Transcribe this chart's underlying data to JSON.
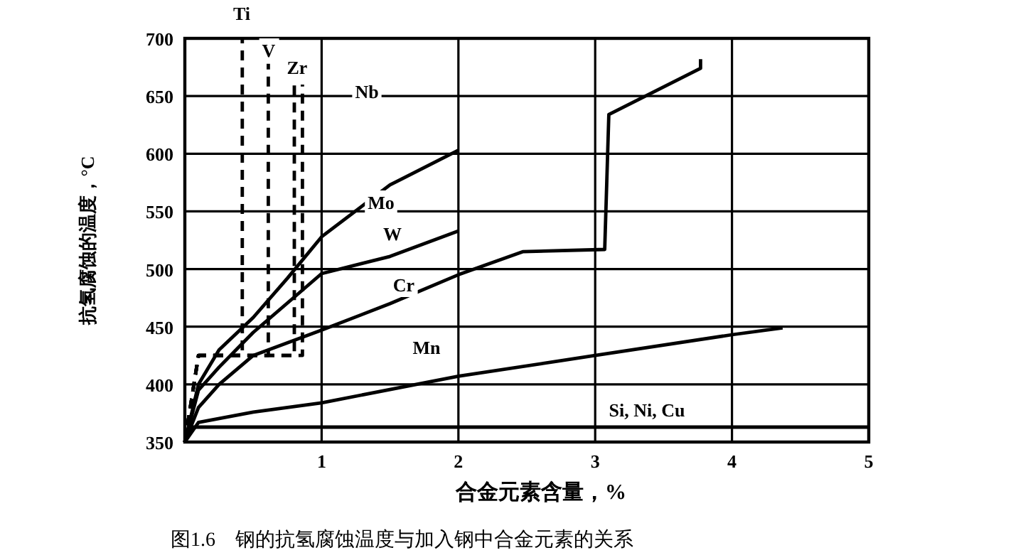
{
  "chart_data": {
    "type": "line",
    "title": "图1.6　钢的抗氢腐蚀温度与加入钢中合金元素的关系",
    "xlabel": "合金元素含量，%",
    "ylabel": "抗氢腐蚀的温度，°C",
    "xlim": [
      0,
      5
    ],
    "ylim": [
      350,
      700
    ],
    "xticks": [
      1,
      2,
      3,
      4,
      5
    ],
    "yticks": [
      350,
      400,
      450,
      500,
      550,
      600,
      650,
      700
    ],
    "grid": true,
    "marker": "none",
    "series": [
      {
        "name": "Ti",
        "color": "#000000",
        "line_style": "dashed",
        "x": [
          0,
          0.1,
          0.42,
          0.42
        ],
        "values": [
          350,
          425,
          425,
          700
        ]
      },
      {
        "name": "V",
        "color": "#000000",
        "line_style": "dashed",
        "x": [
          0,
          0.1,
          0.61,
          0.61
        ],
        "values": [
          350,
          425,
          425,
          678
        ]
      },
      {
        "name": "Zr",
        "color": "#000000",
        "line_style": "dashed",
        "x": [
          0,
          0.1,
          0.8,
          0.8
        ],
        "values": [
          350,
          425,
          425,
          660
        ]
      },
      {
        "name": "Nb",
        "color": "#000000",
        "line_style": "dashed",
        "x": [
          0,
          0.1,
          0.86,
          0.86
        ],
        "values": [
          350,
          425,
          425,
          660
        ]
      },
      {
        "name": "Mo",
        "color": "#000000",
        "line_style": "solid",
        "x": [
          0,
          0.1,
          0.25,
          0.5,
          0.75,
          1,
          1.5,
          2
        ],
        "values": [
          350,
          400,
          430,
          458,
          492,
          528,
          573,
          603
        ]
      },
      {
        "name": "W",
        "color": "#000000",
        "line_style": "solid",
        "x": [
          0,
          0.1,
          0.25,
          0.5,
          1,
          1.5,
          2
        ],
        "values": [
          350,
          395,
          415,
          445,
          496,
          511,
          533
        ]
      },
      {
        "name": "Cr",
        "color": "#000000",
        "line_style": "solid",
        "x": [
          0,
          0.1,
          0.25,
          0.5,
          1,
          1.5,
          2,
          2.47,
          3.07,
          3.1,
          3.77,
          3.77
        ],
        "values": [
          350,
          380,
          400,
          425,
          447,
          470,
          495,
          515,
          517,
          634,
          674,
          682
        ]
      },
      {
        "name": "Mn",
        "color": "#000000",
        "line_style": "solid",
        "x": [
          0,
          0.1,
          0.5,
          1,
          2,
          3,
          4,
          4.37
        ],
        "values": [
          350,
          367,
          376,
          384,
          407,
          425,
          443,
          449
        ]
      },
      {
        "name": "Si, Ni, Cu",
        "color": "#000000",
        "line_style": "solid",
        "x": [
          0,
          0.05,
          5
        ],
        "values": [
          350,
          363,
          363
        ]
      }
    ]
  }
}
